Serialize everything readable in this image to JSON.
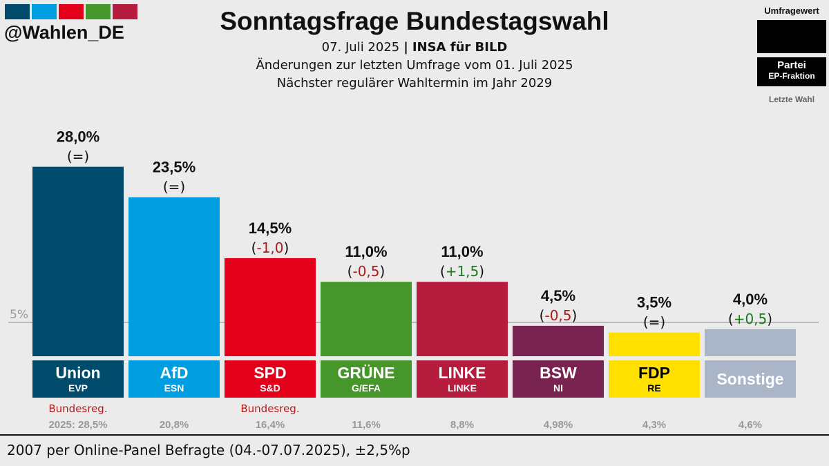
{
  "header": {
    "handle": "@Wahlen_DE",
    "logo_colors": [
      "#004b6b",
      "#009ee0",
      "#e3001b",
      "#46962b",
      "#b61c3e"
    ],
    "title": "Sonntagsfrage Bundestagswahl",
    "date": "07. Juli 2025",
    "institute": "INSA für BILD",
    "line2": "Änderungen zur letzten Umfrage vom 01. Juli 2025",
    "line3": "Nächster regulärer Wahltermin im Jahr 2029"
  },
  "legend": {
    "umfragewert": "Umfragewert",
    "partei": "Partei",
    "fraktion": "EP-Fraktion",
    "letzte_wahl": "Letzte Wahl"
  },
  "footer": "2007 per Online-Panel Befragte (04.-07.07.2025), ±2,5%p",
  "chart_data": {
    "type": "bar",
    "threshold_label": "5%",
    "threshold": 5,
    "categories": [
      "Union",
      "AfD",
      "SPD",
      "GRÜNE",
      "LINKE",
      "BSW",
      "FDP",
      "Sonstige"
    ],
    "values": [
      28.0,
      23.5,
      14.5,
      11.0,
      11.0,
      4.5,
      3.5,
      4.0
    ],
    "bars": [
      {
        "party": "Union",
        "group": "EVP",
        "value_label": "28,0%",
        "change": "(=)",
        "change_dir": "none",
        "color": "#004b6b",
        "text_color": "#ffffff",
        "government": "Bundesreg.",
        "last": "2025: 28,5%"
      },
      {
        "party": "AfD",
        "group": "ESN",
        "value_label": "23,5%",
        "change": "(=)",
        "change_dir": "none",
        "color": "#009ee0",
        "text_color": "#ffffff",
        "government": "",
        "last": "20,8%"
      },
      {
        "party": "SPD",
        "group": "S&D",
        "value_label": "14,5%",
        "change": "-1,0",
        "change_dir": "down",
        "color": "#e3001b",
        "text_color": "#ffffff",
        "government": "Bundesreg.",
        "last": "16,4%"
      },
      {
        "party": "GRÜNE",
        "group": "G/EFA",
        "value_label": "11,0%",
        "change": "-0,5",
        "change_dir": "down",
        "color": "#46962b",
        "text_color": "#ffffff",
        "government": "",
        "last": "11,6%"
      },
      {
        "party": "LINKE",
        "group": "LINKE",
        "value_label": "11,0%",
        "change": "+1,5",
        "change_dir": "up",
        "color": "#b61c3e",
        "text_color": "#ffffff",
        "government": "",
        "last": "8,8%"
      },
      {
        "party": "BSW",
        "group": "NI",
        "value_label": "4,5%",
        "change": "-0,5",
        "change_dir": "down",
        "color": "#792351",
        "text_color": "#ffffff",
        "government": "",
        "last": "4,98%"
      },
      {
        "party": "FDP",
        "group": "RE",
        "value_label": "3,5%",
        "change": "(=)",
        "change_dir": "none",
        "color": "#ffe000",
        "text_color": "#000000",
        "government": "",
        "last": "4,3%"
      },
      {
        "party": "Sonstige",
        "group": "",
        "value_label": "4,0%",
        "change": "+0,5",
        "change_dir": "up",
        "color": "#aab6c8",
        "text_color": "#ffffff",
        "government": "",
        "last": "4,6%"
      }
    ],
    "colors": {
      "down": "#b11a1a",
      "up": "#1e7a1e",
      "neutral": "#111111"
    }
  }
}
